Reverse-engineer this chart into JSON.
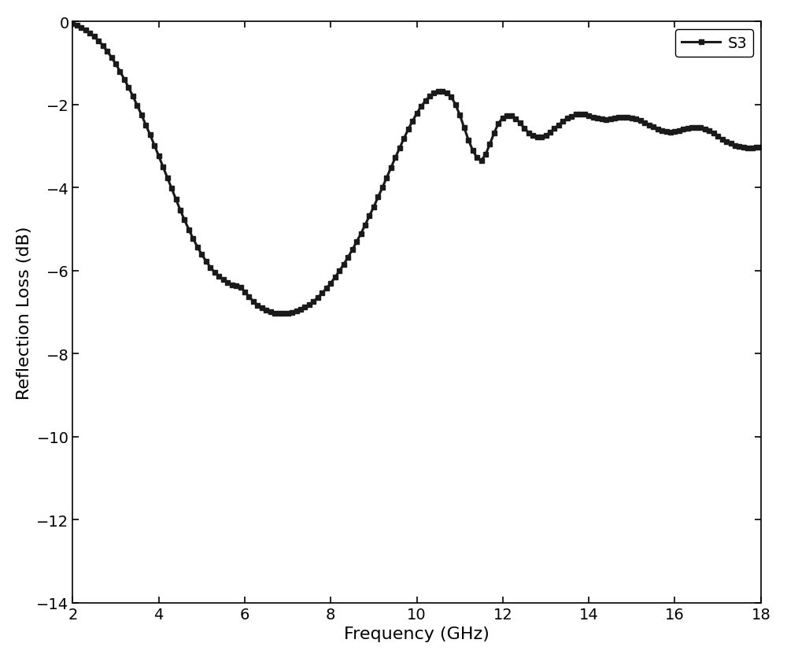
{
  "title": "",
  "xlabel": "Frequency (GHz)",
  "ylabel": "Reflection Loss (dB)",
  "xlim": [
    2,
    18
  ],
  "ylim": [
    -14,
    0
  ],
  "xticks": [
    2,
    4,
    6,
    8,
    10,
    12,
    14,
    16,
    18
  ],
  "yticks": [
    0,
    -2,
    -4,
    -6,
    -8,
    -10,
    -12,
    -14
  ],
  "line_color": "#1a1a1a",
  "line_width": 2.2,
  "marker": "s",
  "marker_size": 5,
  "legend_label": "S3",
  "legend_loc": "upper right",
  "background_color": "#ffffff",
  "x_data": [
    2.0,
    2.1,
    2.2,
    2.3,
    2.4,
    2.5,
    2.6,
    2.7,
    2.8,
    2.9,
    3.0,
    3.1,
    3.2,
    3.3,
    3.4,
    3.5,
    3.6,
    3.7,
    3.8,
    3.9,
    4.0,
    4.1,
    4.2,
    4.3,
    4.4,
    4.5,
    4.6,
    4.7,
    4.8,
    4.9,
    5.0,
    5.1,
    5.2,
    5.3,
    5.4,
    5.5,
    5.6,
    5.7,
    5.8,
    5.9,
    6.0,
    6.1,
    6.2,
    6.3,
    6.4,
    6.5,
    6.6,
    6.7,
    6.8,
    6.9,
    7.0,
    7.1,
    7.2,
    7.3,
    7.4,
    7.5,
    7.6,
    7.7,
    7.8,
    7.9,
    8.0,
    8.1,
    8.2,
    8.3,
    8.4,
    8.5,
    8.6,
    8.7,
    8.8,
    8.9,
    9.0,
    9.1,
    9.2,
    9.3,
    9.4,
    9.5,
    9.6,
    9.7,
    9.8,
    9.9,
    10.0,
    10.1,
    10.2,
    10.3,
    10.4,
    10.5,
    10.6,
    10.7,
    10.8,
    10.9,
    11.0,
    11.1,
    11.2,
    11.3,
    11.4,
    11.5,
    11.6,
    11.7,
    11.8,
    11.9,
    12.0,
    12.1,
    12.2,
    12.3,
    12.4,
    12.5,
    12.6,
    12.7,
    12.8,
    12.9,
    13.0,
    13.1,
    13.2,
    13.3,
    13.4,
    13.5,
    13.6,
    13.7,
    13.8,
    13.9,
    14.0,
    14.1,
    14.2,
    14.3,
    14.4,
    14.5,
    14.6,
    14.7,
    14.8,
    14.9,
    15.0,
    15.1,
    15.2,
    15.3,
    15.4,
    15.5,
    15.6,
    15.7,
    15.8,
    15.9,
    16.0,
    16.1,
    16.2,
    16.3,
    16.4,
    16.5,
    16.6,
    16.7,
    16.8,
    16.9,
    17.0,
    17.1,
    17.2,
    17.3,
    17.4,
    17.5,
    17.6,
    17.7,
    17.8,
    17.9,
    18.0
  ],
  "y_data": [
    -0.05,
    -0.09,
    -0.14,
    -0.2,
    -0.27,
    -0.36,
    -0.46,
    -0.58,
    -0.71,
    -0.86,
    -1.02,
    -1.2,
    -1.39,
    -1.59,
    -1.8,
    -2.02,
    -2.25,
    -2.49,
    -2.73,
    -2.98,
    -3.24,
    -3.5,
    -3.76,
    -4.02,
    -4.28,
    -4.54,
    -4.78,
    -5.01,
    -5.23,
    -5.43,
    -5.61,
    -5.77,
    -5.92,
    -6.04,
    -6.14,
    -6.22,
    -6.29,
    -6.34,
    -6.37,
    -6.4,
    -6.51,
    -6.63,
    -6.74,
    -6.83,
    -6.9,
    -6.95,
    -6.99,
    -7.02,
    -7.03,
    -7.03,
    -7.02,
    -7.0,
    -6.97,
    -6.93,
    -6.88,
    -6.82,
    -6.74,
    -6.65,
    -6.54,
    -6.43,
    -6.3,
    -6.16,
    -6.01,
    -5.85,
    -5.68,
    -5.5,
    -5.31,
    -5.11,
    -4.9,
    -4.68,
    -4.46,
    -4.23,
    -4.0,
    -3.76,
    -3.52,
    -3.28,
    -3.05,
    -2.82,
    -2.6,
    -2.4,
    -2.21,
    -2.05,
    -1.91,
    -1.8,
    -1.72,
    -1.68,
    -1.68,
    -1.72,
    -1.81,
    -2.0,
    -2.25,
    -2.55,
    -2.85,
    -3.1,
    -3.28,
    -3.35,
    -3.2,
    -2.95,
    -2.68,
    -2.45,
    -2.32,
    -2.26,
    -2.27,
    -2.34,
    -2.44,
    -2.57,
    -2.68,
    -2.75,
    -2.79,
    -2.78,
    -2.74,
    -2.67,
    -2.58,
    -2.49,
    -2.4,
    -2.33,
    -2.28,
    -2.24,
    -2.23,
    -2.24,
    -2.27,
    -2.3,
    -2.33,
    -2.35,
    -2.36,
    -2.35,
    -2.33,
    -2.31,
    -2.3,
    -2.3,
    -2.32,
    -2.35,
    -2.39,
    -2.44,
    -2.49,
    -2.54,
    -2.59,
    -2.63,
    -2.65,
    -2.66,
    -2.65,
    -2.63,
    -2.6,
    -2.57,
    -2.55,
    -2.55,
    -2.56,
    -2.59,
    -2.63,
    -2.69,
    -2.76,
    -2.83,
    -2.89,
    -2.94,
    -2.98,
    -3.01,
    -3.03,
    -3.04,
    -3.04,
    -3.03,
    -3.02
  ]
}
